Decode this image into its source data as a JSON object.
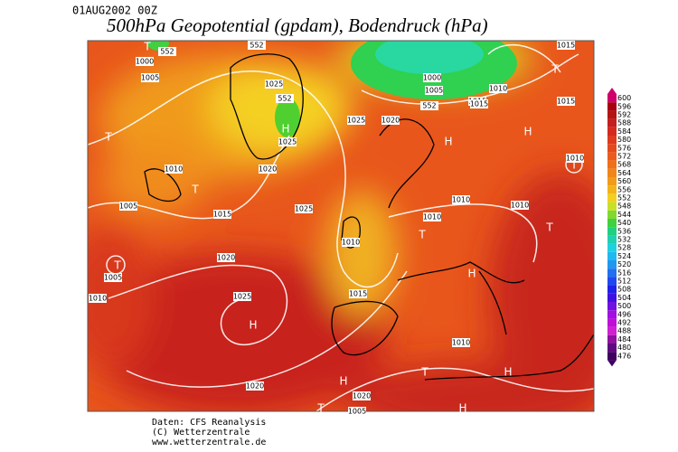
{
  "header": {
    "date": "01AUG2002 00Z",
    "title": "500hPa Geopotential (gpdam), Bodendruck (hPa)"
  },
  "legend": {
    "levels": [
      600,
      596,
      592,
      588,
      584,
      580,
      576,
      572,
      568,
      564,
      560,
      556,
      552,
      548,
      544,
      540,
      536,
      532,
      528,
      524,
      520,
      516,
      512,
      508,
      504,
      500,
      496,
      492,
      488,
      484,
      480,
      476
    ]
  },
  "map": {
    "isobar_labels": [
      "552",
      "1000",
      "1005",
      "552",
      "1025",
      "552",
      "1025",
      "1000",
      "1005",
      "552",
      "1010",
      "1015",
      "1015",
      "1015",
      "1020",
      "1025",
      "1010",
      "1020",
      "1005",
      "1015",
      "1025",
      "1020",
      "1010",
      "1010",
      "1015",
      "1010",
      "1010",
      "1010",
      "1005",
      "1010",
      "1025",
      "1020",
      "1015",
      "1010",
      "1020",
      "1005"
    ],
    "pressure_centers": [
      "T",
      "T",
      "T",
      "H",
      "T",
      "T",
      "H",
      "H",
      "T",
      "T",
      "H",
      "H",
      "T",
      "H",
      "H",
      "T",
      "H",
      "T"
    ]
  },
  "footer": {
    "lines": [
      "Daten: CFS Reanalysis",
      "(C) Wetterzentrale",
      "www.wetterzentrale.de"
    ]
  }
}
